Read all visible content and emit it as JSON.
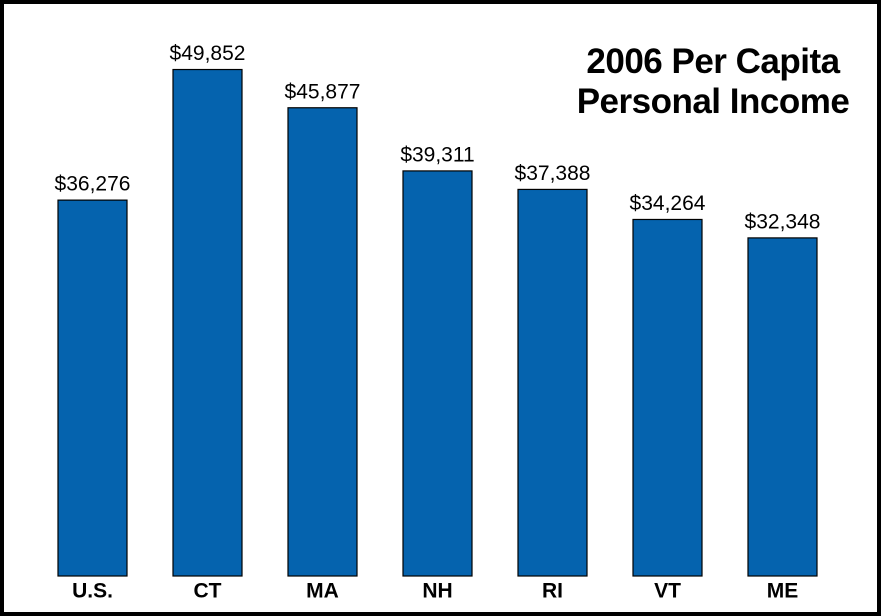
{
  "chart_data": {
    "type": "bar",
    "title": "2006 Per Capita Personal Income",
    "categories": [
      "U.S.",
      "CT",
      "MA",
      "NH",
      "RI",
      "VT",
      "ME"
    ],
    "values": [
      36276,
      49852,
      45877,
      39311,
      37388,
      34264,
      32348
    ],
    "value_labels": [
      "$36,276",
      "$49,852",
      "$45,877",
      "$39,311",
      "$37,388",
      "$34,264",
      "$32,348"
    ],
    "color": "#0563ae",
    "ylim": [
      -2800,
      55000
    ]
  }
}
